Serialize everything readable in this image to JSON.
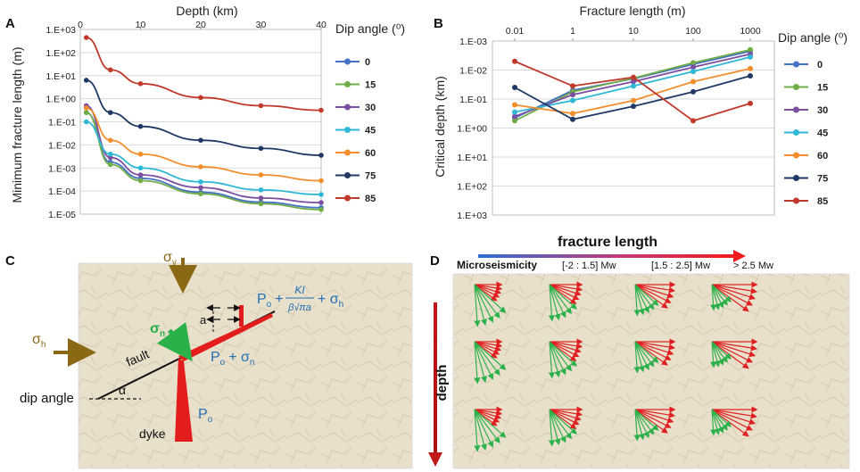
{
  "panels": {
    "a": "A",
    "b": "B",
    "c": "C",
    "d": "D"
  },
  "chart_data": [
    {
      "type": "line",
      "id": "A",
      "title": "",
      "xlabel": "Depth (km)",
      "ylabel": "Minimum fracture length (m)",
      "x_axis_position": "top",
      "y_scale": "log",
      "xlim": [
        0,
        40
      ],
      "ylim_log10": [
        -5,
        3
      ],
      "x_ticks": [
        "0",
        "10",
        "20",
        "30",
        "40"
      ],
      "y_ticks": [
        "1.E-05",
        "1.E-04",
        "1.E-03",
        "1.E-02",
        "1.E-01",
        "1.E+00",
        "1.E+01",
        "1.E+02",
        "1.E+03"
      ],
      "legend_title": "Dip angle (⁰)",
      "x": [
        1,
        5,
        10,
        20,
        30,
        40
      ],
      "series": [
        {
          "name": "0",
          "color": "#4472c4",
          "log10": [
            -0.6,
            -2.75,
            -3.45,
            -4.05,
            -4.48,
            -4.72
          ]
        },
        {
          "name": "15",
          "color": "#70ad47",
          "log10": [
            -0.6,
            -2.85,
            -3.55,
            -4.12,
            -4.55,
            -4.8
          ]
        },
        {
          "name": "30",
          "color": "#7b4ea0",
          "log10": [
            -0.3,
            -2.55,
            -3.3,
            -3.85,
            -4.3,
            -4.5
          ]
        },
        {
          "name": "45",
          "color": "#2eb8d6",
          "log10": [
            -1.0,
            -2.4,
            -3.0,
            -3.6,
            -3.95,
            -4.15
          ]
        },
        {
          "name": "60",
          "color": "#f28e2b",
          "log10": [
            -0.4,
            -1.8,
            -2.4,
            -2.95,
            -3.3,
            -3.55
          ]
        },
        {
          "name": "75",
          "color": "#1f3864",
          "log10": [
            0.8,
            -0.6,
            -1.2,
            -1.8,
            -2.15,
            -2.45
          ]
        },
        {
          "name": "85",
          "color": "#c0392b",
          "log10": [
            2.65,
            1.25,
            0.65,
            0.05,
            -0.3,
            -0.5
          ]
        }
      ]
    },
    {
      "type": "line",
      "id": "B",
      "title": "",
      "xlabel": "Fracture length (m)",
      "ylabel": "Critical depth (km)",
      "x_axis_position": "top",
      "x_scale": "log",
      "y_scale": "log",
      "y_inverted": true,
      "x_ticks": [
        "0.01",
        "1",
        "10",
        "100",
        "1000"
      ],
      "y_ticks": [
        "1.E-03",
        "1.E-02",
        "1.E-01",
        "1.E+00",
        "1.E+01",
        "1.E+02",
        "1.E+03"
      ],
      "legend_title": "Dip angle (⁰)",
      "x": [
        "0.01",
        "1",
        "10",
        "100",
        "1000"
      ],
      "series": [
        {
          "name": "0",
          "color": "#4472c4",
          "log10_depth": [
            -0.35,
            -1.3,
            -1.7,
            -2.2,
            -2.65
          ]
        },
        {
          "name": "15",
          "color": "#70ad47",
          "log10_depth": [
            -0.25,
            -1.25,
            -1.72,
            -2.25,
            -2.7
          ]
        },
        {
          "name": "30",
          "color": "#7b4ea0",
          "log10_depth": [
            -0.4,
            -1.15,
            -1.6,
            -2.1,
            -2.55
          ]
        },
        {
          "name": "45",
          "color": "#2eb8d6",
          "log10_depth": [
            -0.55,
            -0.95,
            -1.45,
            -1.95,
            -2.45
          ]
        },
        {
          "name": "60",
          "color": "#f28e2b",
          "log10_depth": [
            -0.8,
            -0.5,
            -0.95,
            -1.6,
            -2.05
          ]
        },
        {
          "name": "75",
          "color": "#1f3864",
          "log10_depth": [
            -1.4,
            -0.3,
            -0.75,
            -1.25,
            -1.8
          ]
        },
        {
          "name": "85",
          "color": "#c0392b",
          "log10_depth": [
            -2.3,
            -1.45,
            -1.75,
            -0.25,
            -0.85
          ]
        }
      ]
    }
  ],
  "panel_c": {
    "sigma_v": "σ",
    "sigma_v_sub": "v",
    "sigma_h": "σ",
    "sigma_h_sub": "h",
    "sigma_n": "σ",
    "sigma_n_sub": "n",
    "fault": "fault",
    "dip_angle": "dip angle",
    "alpha": "α",
    "dyke": "dyke",
    "a_label": "a",
    "p_o": "P",
    "p_o_sub": "o",
    "plus": "+",
    "ki": "KI",
    "denominator": "β√πa",
    "plus_sigma_h": "+ σ",
    "sigma_h_sub2": "h",
    "po_plus_sigma_n": "P",
    "po_sub2": "o",
    "plus_sigma_n": "+ σ",
    "sigma_n_sub2": "n",
    "dyke_pressure": "P",
    "dyke_pressure_sub": "o"
  },
  "panel_d": {
    "fracture_length": "fracture length",
    "depth": "depth",
    "microseismicity": "Microseismicity",
    "range1": "[-2 : 1.5] Mw",
    "range2": "[1.5 : 2.5]  Mw",
    "range3": "> 2.5 Mw",
    "red_color": "#e02020",
    "green_color": "#2bb14a"
  }
}
